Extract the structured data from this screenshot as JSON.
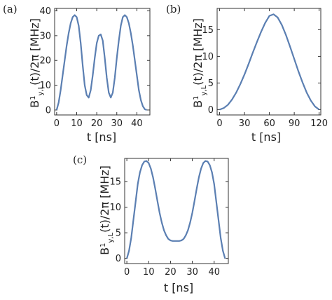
{
  "chart_data": [
    {
      "panel_label": "(a)",
      "type": "line",
      "xlabel": "t [ns]",
      "ylabel": "B^1_{y,L}(t)/2π [MHz]",
      "xlim": [
        -1,
        46.5
      ],
      "ylim": [
        -2,
        41
      ],
      "xticks": [
        0,
        10,
        20,
        30,
        40
      ],
      "yticks": [
        0,
        10,
        20,
        30,
        40
      ],
      "series": [
        {
          "x": [
            0,
            1,
            2,
            3,
            4,
            5,
            6,
            7,
            8,
            9,
            10,
            11,
            12,
            13,
            14,
            15,
            16,
            17,
            18,
            19,
            20,
            21,
            22,
            23,
            24,
            25,
            26,
            27,
            28,
            29,
            30,
            31,
            32,
            33,
            34,
            35,
            36,
            37,
            38,
            39,
            40,
            41,
            42,
            43,
            44,
            45
          ],
          "values": [
            0,
            3,
            8,
            14,
            20,
            26,
            31,
            35,
            37.5,
            38.3,
            37.5,
            34,
            27,
            18,
            10,
            6,
            5,
            8,
            14,
            21,
            27,
            30,
            30.5,
            28,
            21,
            13,
            7,
            5,
            7,
            13,
            21,
            28,
            34,
            37.5,
            38.3,
            37.5,
            35,
            31,
            26,
            20,
            14,
            8,
            4,
            1.5,
            0.3,
            0
          ]
        }
      ]
    },
    {
      "panel_label": "(b)",
      "type": "line",
      "xlabel": "t [ns]",
      "ylabel": "B^1_{y,L}(t)/2π [MHz]",
      "xlim": [
        -3,
        122
      ],
      "ylim": [
        -1,
        19
      ],
      "xticks": [
        0,
        30,
        60,
        90,
        120
      ],
      "yticks": [
        0,
        5,
        10,
        15
      ],
      "series": [
        {
          "x": [
            0,
            5,
            10,
            15,
            20,
            25,
            30,
            35,
            40,
            45,
            50,
            55,
            60,
            65,
            70,
            75,
            80,
            85,
            90,
            95,
            100,
            105,
            110,
            115,
            120
          ],
          "values": [
            0,
            0.3,
            0.9,
            1.9,
            3.2,
            4.8,
            6.6,
            8.6,
            10.7,
            12.7,
            14.6,
            16.3,
            17.6,
            17.9,
            17.3,
            15.9,
            14.0,
            11.8,
            9.5,
            7.2,
            5.1,
            3.2,
            1.7,
            0.6,
            0
          ]
        }
      ]
    },
    {
      "panel_label": "(c)",
      "type": "line",
      "xlabel": "t [ns]",
      "ylabel": "B^1_{y,L}(t)/2π [MHz]",
      "xlim": [
        -1,
        46.5
      ],
      "ylim": [
        -1,
        19.5
      ],
      "xticks": [
        0,
        10,
        20,
        30,
        40
      ],
      "yticks": [
        0,
        5,
        10,
        15
      ],
      "series": [
        {
          "x": [
            0,
            1,
            2,
            3,
            4,
            5,
            6,
            7,
            8,
            9,
            10,
            11,
            12,
            13,
            14,
            15,
            16,
            17,
            18,
            19,
            20,
            21,
            22,
            23,
            24,
            25,
            26,
            27,
            28,
            29,
            30,
            31,
            32,
            33,
            34,
            35,
            36,
            37,
            38,
            39,
            40,
            41,
            42,
            43,
            44,
            45
          ],
          "values": [
            0,
            1.5,
            4,
            7.5,
            11,
            14.5,
            16.8,
            18.2,
            18.9,
            19,
            18.6,
            17.5,
            15.8,
            13.6,
            11.2,
            8.9,
            7,
            5.5,
            4.5,
            3.8,
            3.5,
            3.4,
            3.4,
            3.4,
            3.4,
            3.5,
            3.8,
            4.5,
            5.5,
            7,
            8.9,
            11.2,
            13.6,
            15.8,
            17.5,
            18.6,
            19,
            18.9,
            18.2,
            16.8,
            14.5,
            11,
            7.5,
            4,
            1.5,
            0
          ]
        }
      ]
    }
  ]
}
